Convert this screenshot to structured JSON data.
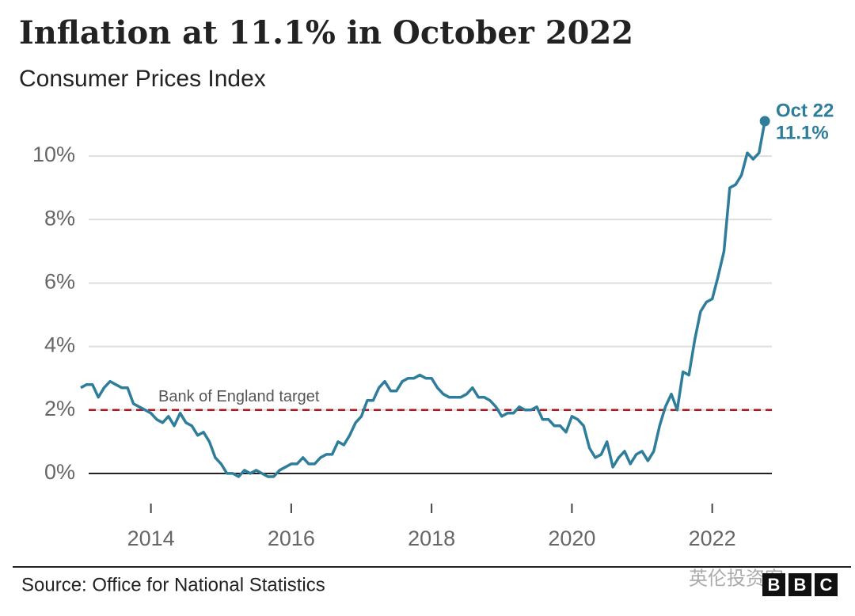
{
  "chart_data": {
    "type": "line",
    "title": "Inflation at 11.1% in October 2022",
    "subtitle": "Consumer Prices Index",
    "source": "Source: Office for National Statistics",
    "watermark": "英伦投资客",
    "logo": [
      "B",
      "B",
      "C"
    ],
    "target": {
      "value": 2,
      "label": "Bank of England target",
      "color": "#b0171f"
    },
    "end_label": {
      "date": "Oct 22",
      "value": "11.1%"
    },
    "xlim": [
      2013,
      2022.85
    ],
    "xticks": [
      2014,
      2016,
      2018,
      2020,
      2022
    ],
    "ylim": [
      -0.6,
      11.3
    ],
    "yticks": [
      {
        "value": 0,
        "label": "0%"
      },
      {
        "value": 2,
        "label": "2%"
      },
      {
        "value": 4,
        "label": "4%"
      },
      {
        "value": 6,
        "label": "6%"
      },
      {
        "value": 8,
        "label": "8%"
      },
      {
        "value": 10,
        "label": "10%"
      }
    ],
    "grid": true,
    "x": [
      2013,
      2013.083,
      2013.167,
      2013.25,
      2013.333,
      2013.417,
      2013.5,
      2013.583,
      2013.667,
      2013.75,
      2013.833,
      2013.917,
      2014,
      2014.083,
      2014.167,
      2014.25,
      2014.333,
      2014.417,
      2014.5,
      2014.583,
      2014.667,
      2014.75,
      2014.833,
      2014.917,
      2015,
      2015.083,
      2015.167,
      2015.25,
      2015.333,
      2015.417,
      2015.5,
      2015.583,
      2015.667,
      2015.75,
      2015.833,
      2015.917,
      2016,
      2016.083,
      2016.167,
      2016.25,
      2016.333,
      2016.417,
      2016.5,
      2016.583,
      2016.667,
      2016.75,
      2016.833,
      2016.917,
      2017,
      2017.083,
      2017.167,
      2017.25,
      2017.333,
      2017.417,
      2017.5,
      2017.583,
      2017.667,
      2017.75,
      2017.833,
      2017.917,
      2018,
      2018.083,
      2018.167,
      2018.25,
      2018.333,
      2018.417,
      2018.5,
      2018.583,
      2018.667,
      2018.75,
      2018.833,
      2018.917,
      2019,
      2019.083,
      2019.167,
      2019.25,
      2019.333,
      2019.417,
      2019.5,
      2019.583,
      2019.667,
      2019.75,
      2019.833,
      2019.917,
      2020,
      2020.083,
      2020.167,
      2020.25,
      2020.333,
      2020.417,
      2020.5,
      2020.583,
      2020.667,
      2020.75,
      2020.833,
      2020.917,
      2021,
      2021.083,
      2021.167,
      2021.25,
      2021.333,
      2021.417,
      2021.5,
      2021.583,
      2021.667,
      2021.75,
      2021.833,
      2021.917,
      2022,
      2022.083,
      2022.167,
      2022.25,
      2022.333,
      2022.417,
      2022.5,
      2022.583,
      2022.667,
      2022.75
    ],
    "series": [
      {
        "name": "CPI",
        "color": "#2e7d9b",
        "values": [
          2.7,
          2.8,
          2.8,
          2.4,
          2.7,
          2.9,
          2.8,
          2.7,
          2.7,
          2.2,
          2.1,
          2.0,
          1.9,
          1.7,
          1.6,
          1.8,
          1.5,
          1.9,
          1.6,
          1.5,
          1.2,
          1.3,
          1.0,
          0.5,
          0.3,
          0.0,
          0.0,
          -0.1,
          0.1,
          0.0,
          0.1,
          0.0,
          -0.1,
          -0.1,
          0.1,
          0.2,
          0.3,
          0.3,
          0.5,
          0.3,
          0.3,
          0.5,
          0.6,
          0.6,
          1.0,
          0.9,
          1.2,
          1.6,
          1.8,
          2.3,
          2.3,
          2.7,
          2.9,
          2.6,
          2.6,
          2.9,
          3.0,
          3.0,
          3.1,
          3.0,
          3.0,
          2.7,
          2.5,
          2.4,
          2.4,
          2.4,
          2.5,
          2.7,
          2.4,
          2.4,
          2.3,
          2.1,
          1.8,
          1.9,
          1.9,
          2.1,
          2.0,
          2.0,
          2.1,
          1.7,
          1.7,
          1.5,
          1.5,
          1.3,
          1.8,
          1.7,
          1.5,
          0.8,
          0.5,
          0.6,
          1.0,
          0.2,
          0.5,
          0.7,
          0.3,
          0.6,
          0.7,
          0.4,
          0.7,
          1.5,
          2.1,
          2.5,
          2.0,
          3.2,
          3.1,
          4.2,
          5.1,
          5.4,
          5.5,
          6.2,
          7.0,
          9.0,
          9.1,
          9.4,
          10.1,
          9.9,
          10.1,
          11.1
        ]
      }
    ]
  }
}
